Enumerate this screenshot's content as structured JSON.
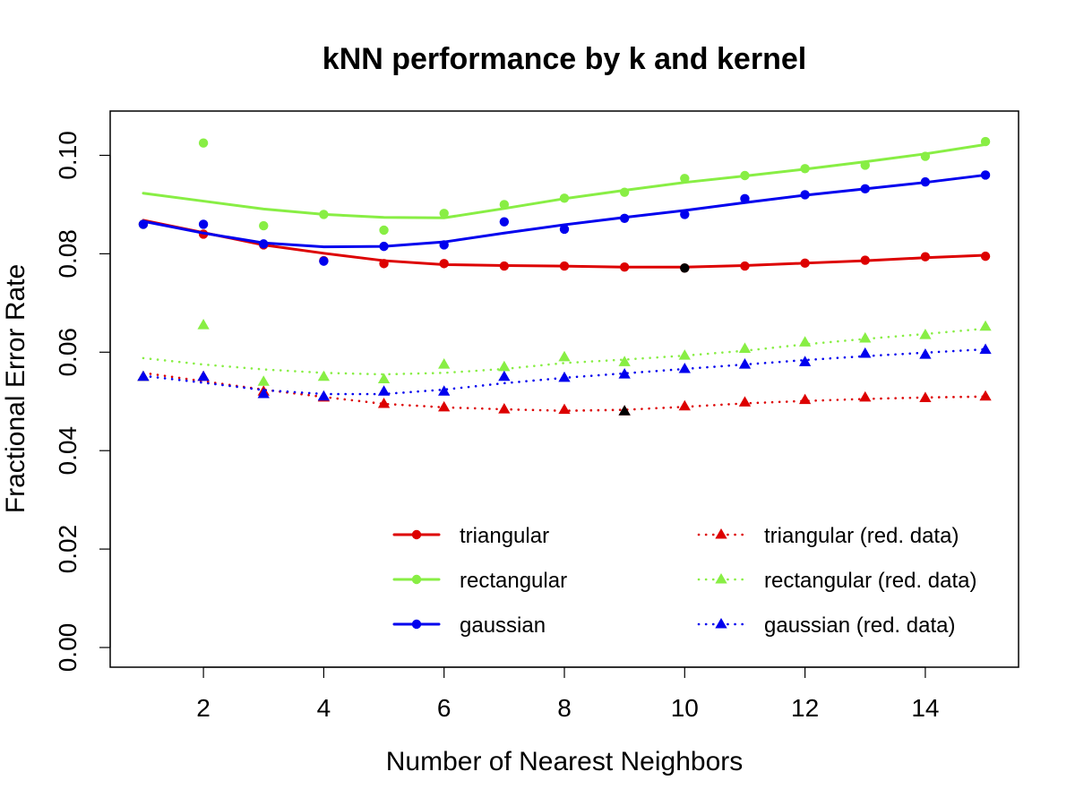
{
  "chart_data": {
    "type": "line",
    "title": "kNN performance by k and kernel",
    "xlabel": "Number of Nearest Neighbors",
    "ylabel": "Fractional Error Rate",
    "xlim": [
      0.45,
      15.55
    ],
    "ylim": [
      -0.004,
      0.109
    ],
    "xticks": [
      2,
      4,
      6,
      8,
      10,
      12,
      14
    ],
    "xtick_labels": [
      "2",
      "4",
      "6",
      "8",
      "10",
      "12",
      "14"
    ],
    "yticks": [
      0.0,
      0.02,
      0.04,
      0.06,
      0.08,
      0.1
    ],
    "ytick_labels": [
      "0.00",
      "0.02",
      "0.04",
      "0.06",
      "0.08",
      "0.10"
    ],
    "legend_position": "bottom-right",
    "x": [
      1,
      2,
      3,
      4,
      5,
      6,
      7,
      8,
      9,
      10,
      11,
      12,
      13,
      14,
      15
    ],
    "series": [
      {
        "name": "triangular",
        "color": "#dd0000",
        "line_style": "solid",
        "marker": "circle",
        "points": [
          0.086,
          0.084,
          0.0818,
          0.0786,
          0.078,
          0.078,
          0.0775,
          0.0775,
          0.0773,
          0.0771,
          0.0775,
          0.0781,
          0.0787,
          0.0794,
          0.0795
        ],
        "smooth": [
          0.0868,
          0.0843,
          0.0818,
          0.0801,
          0.0786,
          0.0778,
          0.0776,
          0.0775,
          0.0773,
          0.0773,
          0.0776,
          0.0781,
          0.0786,
          0.0792,
          0.0797
        ]
      },
      {
        "name": "rectangular",
        "color": "#88ee44",
        "line_style": "solid",
        "marker": "circle",
        "points": [
          0.086,
          0.1025,
          0.0857,
          0.088,
          0.0848,
          0.0882,
          0.09,
          0.0913,
          0.0925,
          0.0953,
          0.0959,
          0.0973,
          0.098,
          0.0998,
          0.1028
        ],
        "smooth": [
          0.0923,
          0.0907,
          0.0891,
          0.088,
          0.0874,
          0.0873,
          0.0892,
          0.0912,
          0.0929,
          0.0945,
          0.0958,
          0.0972,
          0.0987,
          0.1003,
          0.1022
        ]
      },
      {
        "name": "gaussian",
        "color": "#0000ee",
        "line_style": "solid",
        "marker": "circle",
        "points": [
          0.086,
          0.086,
          0.082,
          0.0785,
          0.0815,
          0.0818,
          0.0865,
          0.085,
          0.0872,
          0.088,
          0.0912,
          0.092,
          0.0932,
          0.0946,
          0.096
        ],
        "smooth": [
          0.0866,
          0.0842,
          0.0822,
          0.0814,
          0.0815,
          0.0824,
          0.0842,
          0.0859,
          0.0874,
          0.0888,
          0.0904,
          0.0919,
          0.0932,
          0.0945,
          0.096
        ]
      },
      {
        "name": "triangular (red. data)",
        "color": "#dd0000",
        "line_style": "dotted",
        "marker": "triangle",
        "points": [
          0.055,
          0.055,
          0.052,
          0.0508,
          0.0495,
          0.0488,
          0.0484,
          0.0483,
          0.048,
          0.049,
          0.0498,
          0.0503,
          0.0508,
          0.0507,
          0.051
        ],
        "smooth": [
          0.0558,
          0.0541,
          0.0524,
          0.0509,
          0.0495,
          0.0488,
          0.0484,
          0.0481,
          0.0483,
          0.0489,
          0.0496,
          0.0501,
          0.0505,
          0.0508,
          0.051
        ]
      },
      {
        "name": "rectangular (red. data)",
        "color": "#88ee44",
        "line_style": "dotted",
        "marker": "triangle",
        "points": [
          0.055,
          0.0655,
          0.054,
          0.055,
          0.0545,
          0.0575,
          0.057,
          0.059,
          0.058,
          0.0593,
          0.0607,
          0.062,
          0.0628,
          0.0635,
          0.0652
        ],
        "smooth": [
          0.0588,
          0.0575,
          0.0565,
          0.0558,
          0.0555,
          0.0558,
          0.0566,
          0.0578,
          0.0585,
          0.0593,
          0.0603,
          0.0616,
          0.0627,
          0.0637,
          0.0648
        ]
      },
      {
        "name": "gaussian (red. data)",
        "color": "#0000ee",
        "line_style": "dotted",
        "marker": "triangle",
        "points": [
          0.055,
          0.055,
          0.0515,
          0.051,
          0.052,
          0.052,
          0.055,
          0.0548,
          0.0555,
          0.0566,
          0.0575,
          0.058,
          0.0597,
          0.0595,
          0.0605
        ],
        "smooth": [
          0.0552,
          0.0538,
          0.0523,
          0.0515,
          0.0515,
          0.0524,
          0.0537,
          0.0548,
          0.0557,
          0.0566,
          0.0575,
          0.0584,
          0.0592,
          0.0599,
          0.0606
        ]
      }
    ],
    "highlights": [
      {
        "series": "triangular",
        "x": 10,
        "y": 0.0771,
        "color": "#000000",
        "marker": "circle"
      },
      {
        "series": "triangular (red. data)",
        "x": 9,
        "y": 0.048,
        "color": "#000000",
        "marker": "triangle"
      }
    ]
  }
}
